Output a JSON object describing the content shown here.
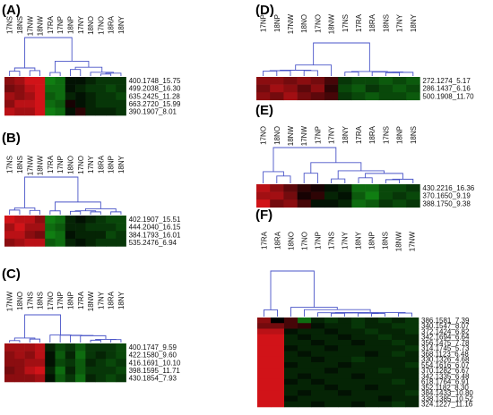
{
  "chart_data": [
    {
      "type": "heatmap",
      "panel": "(A)",
      "columns": [
        "17NS",
        "18NS",
        "17NW",
        "18NW",
        "17RA",
        "17NP",
        "18NP",
        "17NY",
        "18NO",
        "17NO",
        "18RA",
        "18NY"
      ],
      "rows": [
        "400.1748_15.75",
        "499.2038_16.30",
        "635.2425_11.28",
        "663.2720_15.99",
        "390.1907_8.01"
      ],
      "values": [
        [
          0.6,
          0.7,
          0.9,
          0.9,
          -0.7,
          -0.6,
          -0.1,
          -0.1,
          -0.2,
          -0.3,
          -0.3,
          -0.3
        ],
        [
          0.5,
          0.6,
          0.8,
          0.9,
          -0.6,
          -0.6,
          -0.1,
          -0.2,
          -0.3,
          -0.3,
          -0.4,
          -0.3
        ],
        [
          0.7,
          0.6,
          0.7,
          0.9,
          -0.5,
          -0.6,
          -0.2,
          -0.1,
          -0.2,
          -0.3,
          -0.3,
          -0.4
        ],
        [
          0.6,
          0.8,
          0.8,
          0.9,
          -0.6,
          -0.5,
          0.1,
          -0.1,
          -0.2,
          -0.3,
          -0.3,
          -0.3
        ],
        [
          0.8,
          0.7,
          0.7,
          0.9,
          -0.7,
          -0.6,
          -0.1,
          0.2,
          -0.2,
          -0.2,
          -0.2,
          -0.3
        ]
      ]
    },
    {
      "type": "heatmap",
      "panel": "(B)",
      "columns": [
        "17NS",
        "18NS",
        "17NW",
        "18NW",
        "17RA",
        "17NP",
        "18NO",
        "17NO",
        "17NY",
        "18RA",
        "18NP",
        "18NY"
      ],
      "rows": [
        "402.1907_15.51",
        "444.2040_16.15",
        "384.1793_16.01",
        "535.2476_6.94"
      ],
      "values": [
        [
          0.9,
          0.8,
          0.8,
          0.6,
          -0.7,
          -0.6,
          -0.2,
          -0.1,
          -0.2,
          -0.3,
          -0.4,
          -0.4
        ],
        [
          0.7,
          0.9,
          0.7,
          0.7,
          -0.6,
          -0.5,
          -0.2,
          -0.2,
          -0.3,
          -0.3,
          -0.3,
          -0.4
        ],
        [
          0.8,
          0.8,
          0.6,
          0.5,
          -0.7,
          -0.6,
          -0.1,
          -0.2,
          -0.2,
          -0.2,
          -0.4,
          -0.3
        ],
        [
          0.6,
          0.7,
          0.8,
          0.8,
          -0.5,
          -0.6,
          -0.2,
          -0.1,
          -0.2,
          -0.3,
          -0.3,
          -0.3
        ]
      ]
    },
    {
      "type": "heatmap",
      "panel": "(C)",
      "columns": [
        "17NW",
        "18NO",
        "17NS",
        "18NS",
        "17NO",
        "17NP",
        "18NP",
        "17RA",
        "18NW",
        "17NY",
        "18RA",
        "18NY"
      ],
      "rows": [
        "400.1747_9.59",
        "422.1580_9.60",
        "416.1691_10.10",
        "398.1595_11.71",
        "430.1854_7.93"
      ],
      "values": [
        [
          0.7,
          0.7,
          0.7,
          0.8,
          -0.2,
          -0.4,
          -0.3,
          -0.5,
          -0.3,
          -0.3,
          -0.3,
          -0.4
        ],
        [
          0.6,
          0.7,
          0.6,
          0.8,
          -0.1,
          -0.5,
          -0.2,
          -0.6,
          -0.3,
          -0.2,
          -0.3,
          -0.4
        ],
        [
          0.6,
          0.6,
          0.7,
          0.7,
          -0.1,
          -0.4,
          -0.3,
          -0.5,
          -0.2,
          -0.3,
          -0.4,
          -0.3
        ],
        [
          0.5,
          0.6,
          0.8,
          0.9,
          -0.2,
          -0.6,
          -0.2,
          -0.5,
          -0.3,
          -0.3,
          -0.3,
          -0.4
        ],
        [
          0.6,
          0.6,
          0.6,
          0.7,
          -0.1,
          -0.5,
          -0.3,
          -0.6,
          -0.2,
          -0.3,
          -0.4,
          -0.3
        ]
      ]
    },
    {
      "type": "heatmap",
      "panel": "(D)",
      "columns": [
        "17NP",
        "18NP",
        "17NW",
        "18NO",
        "17NO",
        "18NW",
        "17NS",
        "17RA",
        "18RA",
        "18NS",
        "17NY",
        "18NY"
      ],
      "rows": [
        "272.1274_5.17",
        "286.1437_6.16",
        "500.1908_11.70"
      ],
      "values": [
        [
          0.6,
          0.6,
          0.5,
          0.6,
          0.5,
          0.3,
          -0.3,
          -0.4,
          -0.4,
          -0.5,
          -0.4,
          -0.5
        ],
        [
          0.5,
          0.7,
          0.6,
          0.4,
          0.6,
          0.2,
          -0.4,
          -0.5,
          -0.3,
          -0.4,
          -0.5,
          -0.4
        ],
        [
          0.6,
          0.5,
          0.7,
          0.5,
          0.4,
          0.3,
          -0.3,
          -0.4,
          -0.5,
          -0.4,
          -0.4,
          -0.5
        ]
      ]
    },
    {
      "type": "heatmap",
      "panel": "(E)",
      "columns": [
        "17NO",
        "18NO",
        "18NW",
        "17NW",
        "17NP",
        "17NY",
        "18NY",
        "17RA",
        "18RA",
        "17NS",
        "18NP",
        "18NS"
      ],
      "rows": [
        "430.2216_16.36",
        "370.1650_9.19",
        "388.1750_9.38"
      ],
      "values": [
        [
          0.8,
          0.6,
          0.4,
          0.2,
          0.1,
          -0.1,
          -0.2,
          -0.6,
          -0.6,
          -0.4,
          -0.4,
          -0.3
        ],
        [
          0.7,
          0.7,
          0.5,
          0.1,
          0.2,
          -0.2,
          -0.1,
          -0.5,
          -0.7,
          -0.4,
          -0.3,
          -0.4
        ],
        [
          0.9,
          0.5,
          0.6,
          0.3,
          -0.1,
          -0.1,
          -0.2,
          -0.6,
          -0.5,
          -0.3,
          -0.4,
          -0.3
        ]
      ]
    },
    {
      "type": "heatmap",
      "panel": "(F)",
      "columns": [
        "17RA",
        "18RA",
        "18NO",
        "17NO",
        "17NP",
        "17NS",
        "17NY",
        "18NY",
        "18NP",
        "18NS",
        "18NW",
        "17NW"
      ],
      "rows": [
        "386.1581_7.39",
        "340.1547_8.07",
        "372.1424_6.82",
        "342.1694_6.64",
        "356.1475_7.78",
        "314.1745_5.73",
        "368.1123_6.48",
        "330.1326_4.68",
        "554.1616_6.07",
        "370.1282_6.67",
        "342.1335_6.48",
        "618.1764_6.91",
        "352.1182_8.30",
        "384.1433_10.80",
        "338.1385_10.52",
        "324.1227_11.16"
      ],
      "values": [
        [
          0.6,
          0.0,
          0.3,
          -0.6,
          -0.2,
          -0.3,
          -0.2,
          -0.3,
          -0.2,
          -0.3,
          -0.2,
          -0.3
        ],
        [
          0.5,
          0.5,
          0.3,
          0.2,
          -0.1,
          -0.2,
          -0.2,
          -0.3,
          -0.2,
          -0.2,
          -0.3,
          -0.3
        ],
        [
          0.8,
          0.8,
          -0.1,
          -0.2,
          -0.2,
          -0.1,
          -0.2,
          -0.2,
          -0.3,
          -0.2,
          -0.2,
          -0.3
        ],
        [
          0.9,
          0.9,
          -0.2,
          -0.1,
          -0.2,
          -0.2,
          -0.1,
          -0.2,
          -0.2,
          -0.3,
          -0.2,
          -0.2
        ],
        [
          0.9,
          0.9,
          -0.2,
          -0.2,
          -0.1,
          -0.2,
          -0.2,
          -0.1,
          -0.2,
          -0.2,
          -0.3,
          -0.2
        ],
        [
          0.9,
          0.9,
          -0.1,
          -0.2,
          -0.2,
          -0.1,
          -0.2,
          -0.2,
          -0.2,
          -0.2,
          -0.2,
          -0.3
        ],
        [
          0.9,
          0.9,
          -0.2,
          -0.1,
          -0.2,
          -0.2,
          -0.2,
          -0.2,
          -0.1,
          -0.2,
          -0.3,
          -0.2
        ],
        [
          0.9,
          0.9,
          -0.2,
          -0.2,
          -0.1,
          -0.2,
          -0.2,
          -0.3,
          -0.2,
          -0.2,
          -0.2,
          -0.2
        ],
        [
          0.9,
          0.9,
          -0.1,
          -0.2,
          -0.2,
          -0.2,
          -0.1,
          -0.2,
          -0.2,
          -0.2,
          -0.2,
          -0.3
        ],
        [
          0.9,
          0.9,
          -0.2,
          -0.2,
          -0.2,
          -0.1,
          -0.2,
          -0.2,
          -0.2,
          -0.3,
          -0.2,
          -0.2
        ],
        [
          0.9,
          0.9,
          -0.2,
          -0.1,
          -0.2,
          -0.2,
          -0.2,
          -0.1,
          -0.2,
          -0.2,
          -0.2,
          -0.2
        ],
        [
          0.9,
          0.9,
          -0.1,
          -0.2,
          -0.1,
          -0.2,
          -0.2,
          -0.2,
          -0.2,
          -0.2,
          -0.3,
          -0.2
        ],
        [
          0.9,
          0.9,
          -0.2,
          -0.2,
          -0.2,
          -0.1,
          -0.2,
          -0.2,
          -0.1,
          -0.2,
          -0.2,
          -0.2
        ],
        [
          0.9,
          0.9,
          -0.2,
          -0.1,
          -0.2,
          -0.2,
          -0.1,
          -0.2,
          -0.2,
          -0.2,
          -0.2,
          -0.3
        ],
        [
          0.9,
          0.9,
          -0.1,
          -0.2,
          -0.2,
          -0.2,
          -0.2,
          -0.2,
          -0.2,
          -0.1,
          -0.2,
          -0.2
        ],
        [
          0.9,
          0.9,
          -0.2,
          -0.2,
          -0.1,
          -0.2,
          -0.2,
          -0.1,
          -0.2,
          -0.2,
          -0.3,
          -0.2
        ]
      ]
    }
  ],
  "colors": {
    "high": "#e8151b",
    "low": "#17b41a",
    "mid": "#000000",
    "dendrogram": "#4a55c8"
  }
}
